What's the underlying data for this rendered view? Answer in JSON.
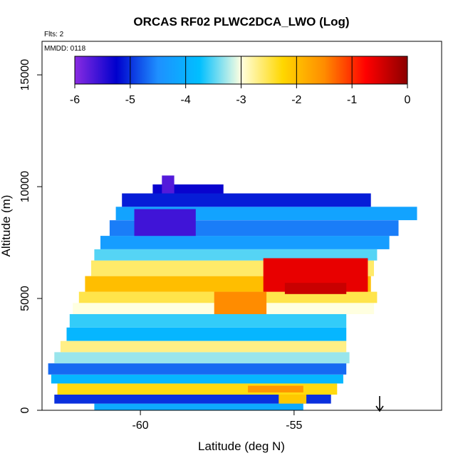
{
  "chart_data": {
    "type": "heatmap",
    "title": "ORCAS RF02 PLWC2DCA_LWO (Log)",
    "subtitle_left": "Flts: 2",
    "inset_label": "MMDD: 0118",
    "xlabel": "Latitude (deg N)",
    "ylabel": "Altitude (m)",
    "xlim": [
      -63.2,
      -50.2
    ],
    "ylim": [
      0,
      16500
    ],
    "x_ticks": [
      -60,
      -55
    ],
    "x_tick_labels": [
      "-60",
      "-55"
    ],
    "y_ticks": [
      0,
      5000,
      10000,
      15000
    ],
    "y_tick_labels": [
      "0",
      "5000",
      "10000",
      "15000"
    ],
    "colorbar": {
      "min": -6,
      "max": 0,
      "ticks": [
        -6,
        -5,
        -4,
        -3,
        -2,
        -1,
        0
      ],
      "tick_labels": [
        "-6",
        "-5",
        "-4",
        "-3",
        "-2",
        "-1",
        "0"
      ],
      "colors": [
        "#8a2be2",
        "#0000cd",
        "#1e90ff",
        "#00bfff",
        "#ffffe0",
        "#ffd700",
        "#ff8c00",
        "#ff0000",
        "#8b0000"
      ]
    },
    "bands": [
      {
        "alt_lo": 0,
        "alt_hi": 300,
        "lat_lo": -61.5,
        "lat_hi": -54.7,
        "value": -4.1
      },
      {
        "alt_lo": 300,
        "alt_hi": 700,
        "lat_lo": -62.8,
        "lat_hi": -53.8,
        "value": -5.0
      },
      {
        "alt_lo": 700,
        "alt_hi": 1200,
        "lat_lo": -62.7,
        "lat_hi": -53.6,
        "value": -2.3
      },
      {
        "alt_lo": 1200,
        "alt_hi": 1600,
        "lat_lo": -62.9,
        "lat_hi": -53.4,
        "value": -3.9
      },
      {
        "alt_lo": 1600,
        "alt_hi": 2100,
        "lat_lo": -63.0,
        "lat_hi": -53.3,
        "value": -4.7
      },
      {
        "alt_lo": 2100,
        "alt_hi": 2600,
        "lat_lo": -62.8,
        "lat_hi": -53.2,
        "value": -3.3
      },
      {
        "alt_lo": 2600,
        "alt_hi": 3100,
        "lat_lo": -62.6,
        "lat_hi": -53.3,
        "value": -2.7
      },
      {
        "alt_lo": 3100,
        "alt_hi": 3700,
        "lat_lo": -62.4,
        "lat_hi": -53.3,
        "value": -3.9
      },
      {
        "alt_lo": 3700,
        "alt_hi": 4300,
        "lat_lo": -62.3,
        "lat_hi": -53.3,
        "value": -3.6
      },
      {
        "alt_lo": 4300,
        "alt_hi": 4800,
        "lat_lo": -62.2,
        "lat_hi": -52.4,
        "value": -3.0
      },
      {
        "alt_lo": 4800,
        "alt_hi": 5300,
        "lat_lo": -62.0,
        "lat_hi": -52.3,
        "value": -2.5
      },
      {
        "alt_lo": 5300,
        "alt_hi": 6000,
        "lat_lo": -61.8,
        "lat_hi": -52.5,
        "value": -2.0
      },
      {
        "alt_lo": 6000,
        "alt_hi": 6700,
        "lat_lo": -61.6,
        "lat_hi": -52.4,
        "value": -2.6
      },
      {
        "alt_lo": 6700,
        "alt_hi": 7200,
        "lat_lo": -61.5,
        "lat_hi": -52.3,
        "value": -3.5
      },
      {
        "alt_lo": 7200,
        "alt_hi": 7800,
        "lat_lo": -61.3,
        "lat_hi": -51.9,
        "value": -4.3
      },
      {
        "alt_lo": 7800,
        "alt_hi": 8500,
        "lat_lo": -61.0,
        "lat_hi": -51.6,
        "value": -4.6
      },
      {
        "alt_lo": 8500,
        "alt_hi": 9100,
        "lat_lo": -60.8,
        "lat_hi": -51.0,
        "value": -4.2
      },
      {
        "alt_lo": 9100,
        "alt_hi": 9700,
        "lat_lo": -60.6,
        "lat_hi": -52.5,
        "value": -5.1
      },
      {
        "alt_lo": 9700,
        "alt_hi": 10100,
        "lat_lo": -59.6,
        "lat_hi": -57.3,
        "value": -5.3
      }
    ],
    "hotspots": [
      {
        "alt_lo": 5300,
        "alt_hi": 6800,
        "lat_lo": -56.0,
        "lat_hi": -52.6,
        "value": -0.6
      },
      {
        "alt_lo": 5200,
        "alt_hi": 5700,
        "lat_lo": -55.3,
        "lat_hi": -53.3,
        "value": -0.4
      },
      {
        "alt_lo": 4300,
        "alt_hi": 5300,
        "lat_lo": -57.6,
        "lat_hi": -55.9,
        "value": -1.5
      },
      {
        "alt_lo": 800,
        "alt_hi": 1100,
        "lat_lo": -56.5,
        "lat_hi": -54.7,
        "value": -1.6
      },
      {
        "alt_lo": 300,
        "alt_hi": 700,
        "lat_lo": -55.5,
        "lat_hi": -54.6,
        "value": -2.1
      },
      {
        "alt_lo": 7800,
        "alt_hi": 9000,
        "lat_lo": -60.2,
        "lat_hi": -58.2,
        "value": -5.6
      },
      {
        "alt_lo": 9700,
        "alt_hi": 10500,
        "lat_lo": -59.3,
        "lat_hi": -58.9,
        "value": -5.7
      }
    ]
  }
}
